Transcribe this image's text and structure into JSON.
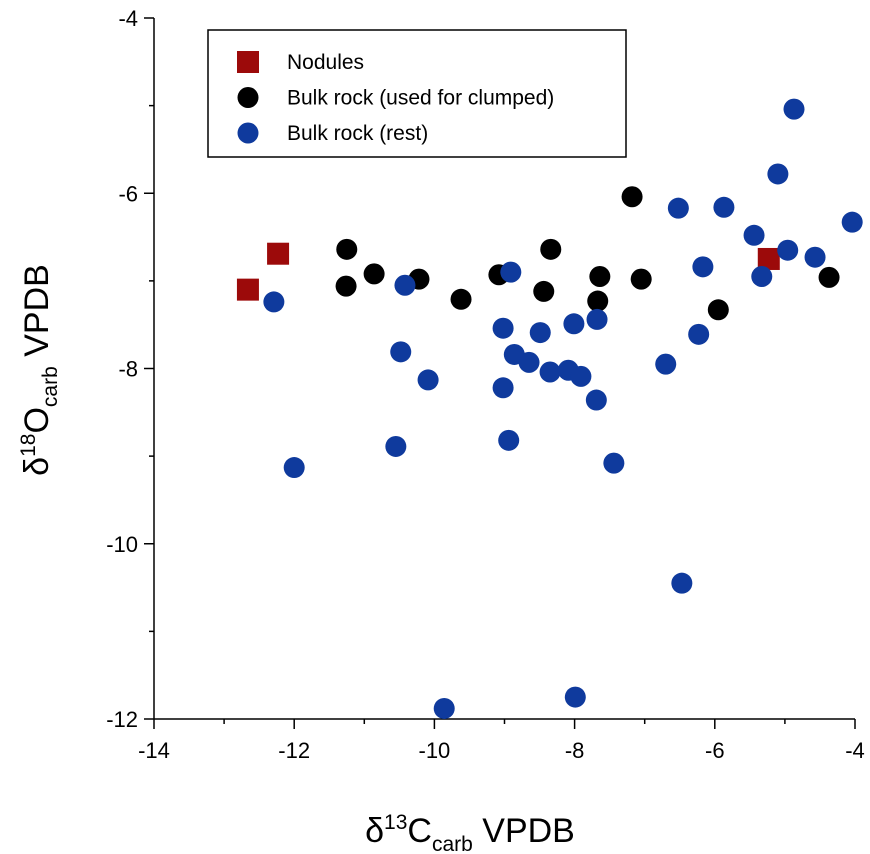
{
  "chart_data": {
    "type": "scatter",
    "xlabel": [
      "δ",
      "13",
      "C",
      "carb",
      " VPDB"
    ],
    "ylabel": [
      "δ",
      "18",
      "O",
      "carb",
      " VPDB"
    ],
    "xlim": [
      -14,
      -4
    ],
    "xticks": [
      -14,
      -12,
      -10,
      -8,
      -6,
      -4
    ],
    "xticks_minor": [
      -13,
      -11,
      -9,
      -7,
      -5
    ],
    "ylim": [
      -12,
      -4
    ],
    "yticks": [
      -12,
      -10,
      -8,
      -6,
      -4
    ],
    "yticks_minor": [
      -11,
      -9,
      -7,
      -5
    ],
    "grid": false,
    "legend": "top-left",
    "series": [
      {
        "name": "Nodules",
        "color": "#9c0a0a",
        "marker": "square",
        "x": [
          -12.66,
          -12.23,
          -5.23
        ],
        "values": [
          -7.1,
          -6.69,
          -6.75
        ]
      },
      {
        "name": "Bulk rock (used for clumped)",
        "color": "#000000",
        "marker": "circle",
        "x": [
          -11.25,
          -11.26,
          -10.86,
          -10.22,
          -9.62,
          -9.08,
          -8.44,
          -8.34,
          -7.64,
          -7.67,
          -7.05,
          -7.18,
          -5.95,
          -4.37
        ],
        "values": [
          -6.64,
          -7.06,
          -6.92,
          -6.98,
          -7.21,
          -6.93,
          -7.12,
          -6.64,
          -6.95,
          -7.23,
          -6.98,
          -6.04,
          -7.33,
          -6.96
        ]
      },
      {
        "name": "Bulk rock (rest)",
        "color": "#0f3a9d",
        "marker": "circle",
        "x": [
          -12.29,
          -12.0,
          -10.42,
          -10.48,
          -10.09,
          -10.55,
          -9.86,
          -8.91,
          -9.02,
          -8.86,
          -8.65,
          -9.02,
          -8.94,
          -8.49,
          -8.35,
          -8.09,
          -8.01,
          -7.91,
          -7.68,
          -7.69,
          -7.44,
          -7.99,
          -6.7,
          -6.52,
          -6.47,
          -6.23,
          -6.17,
          -5.87,
          -5.44,
          -5.33,
          -4.96,
          -5.1,
          -4.87,
          -4.57,
          -4.04
        ],
        "values": [
          -7.24,
          -9.13,
          -7.05,
          -7.81,
          -8.13,
          -8.89,
          -11.88,
          -6.9,
          -7.54,
          -7.84,
          -7.93,
          -8.22,
          -8.82,
          -7.59,
          -8.04,
          -8.02,
          -7.49,
          -8.09,
          -7.44,
          -8.36,
          -9.08,
          -11.75,
          -7.95,
          -6.17,
          -10.45,
          -7.61,
          -6.84,
          -6.16,
          -6.48,
          -6.95,
          -6.65,
          -5.78,
          -5.04,
          -6.73,
          -6.33
        ]
      }
    ]
  }
}
